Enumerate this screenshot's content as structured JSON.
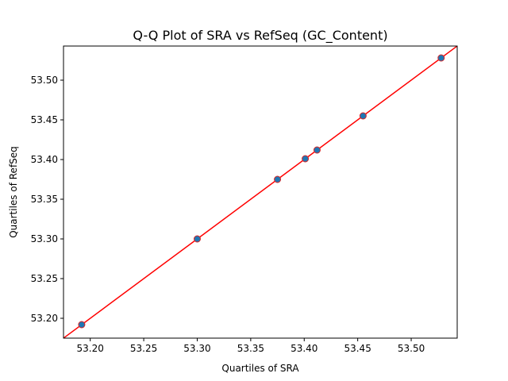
{
  "chart_data": {
    "type": "scatter",
    "title": "Q-Q Plot of SRA vs RefSeq (GC_Content)",
    "xlabel": "Quartiles of SRA",
    "ylabel": "Quartiles of RefSeq",
    "xlim": [
      53.175,
      53.543
    ],
    "ylim": [
      53.175,
      53.543
    ],
    "xticks": [
      53.2,
      53.25,
      53.3,
      53.35,
      53.4,
      53.45,
      53.5
    ],
    "yticks": [
      53.2,
      53.25,
      53.3,
      53.35,
      53.4,
      53.45,
      53.5
    ],
    "xtick_labels": [
      "53.20",
      "53.25",
      "53.30",
      "53.35",
      "53.40",
      "53.45",
      "53.50"
    ],
    "ytick_labels": [
      "53.20",
      "53.25",
      "53.30",
      "53.35",
      "53.40",
      "53.45",
      "53.50"
    ],
    "grid": false,
    "points": [
      {
        "x": 53.192,
        "y": 53.192
      },
      {
        "x": 53.3,
        "y": 53.3
      },
      {
        "x": 53.375,
        "y": 53.375
      },
      {
        "x": 53.401,
        "y": 53.401
      },
      {
        "x": 53.412,
        "y": 53.412
      },
      {
        "x": 53.455,
        "y": 53.455
      },
      {
        "x": 53.528,
        "y": 53.528
      }
    ],
    "reference_line": {
      "slope": 1,
      "intercept": 0,
      "color": "#ff0000"
    },
    "point_color": "#1f77b4",
    "point_edge_color": "#d62728"
  }
}
